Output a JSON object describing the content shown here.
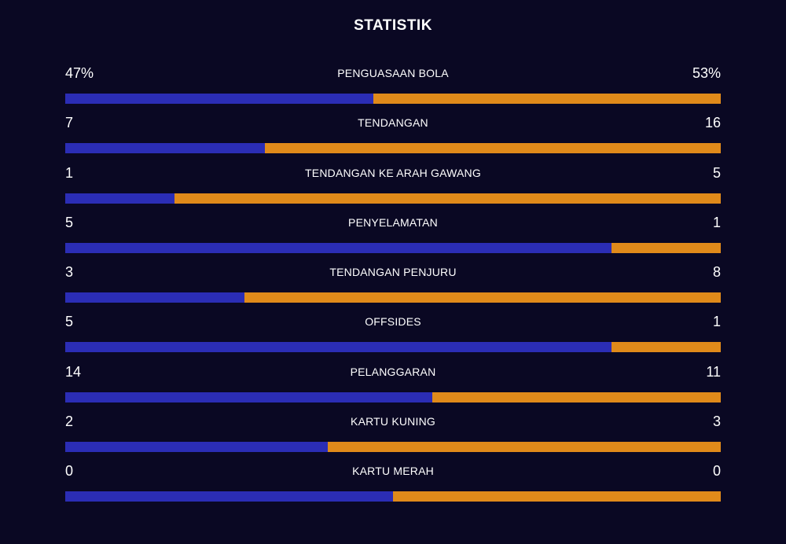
{
  "header": {
    "title": "STATISTIK"
  },
  "colors": {
    "background": "#0a0823",
    "home": "#2b2db5",
    "away": "#e08a1a"
  },
  "stats": [
    {
      "label": "PENGUASAAN BOLA",
      "home": "47%",
      "away": "53%",
      "home_share": 0.47
    },
    {
      "label": "TENDANGAN",
      "home": "7",
      "away": "16",
      "home_share": 0.304
    },
    {
      "label": "TENDANGAN KE ARAH GAWANG",
      "home": "1",
      "away": "5",
      "home_share": 0.167
    },
    {
      "label": "PENYELAMATAN",
      "home": "5",
      "away": "1",
      "home_share": 0.833
    },
    {
      "label": "TENDANGAN PENJURU",
      "home": "3",
      "away": "8",
      "home_share": 0.273
    },
    {
      "label": "OFFSIDES",
      "home": "5",
      "away": "1",
      "home_share": 0.833
    },
    {
      "label": "PELANGGARAN",
      "home": "14",
      "away": "11",
      "home_share": 0.56
    },
    {
      "label": "KARTU KUNING",
      "home": "2",
      "away": "3",
      "home_share": 0.4
    },
    {
      "label": "KARTU MERAH",
      "home": "0",
      "away": "0",
      "home_share": 0.5
    }
  ]
}
